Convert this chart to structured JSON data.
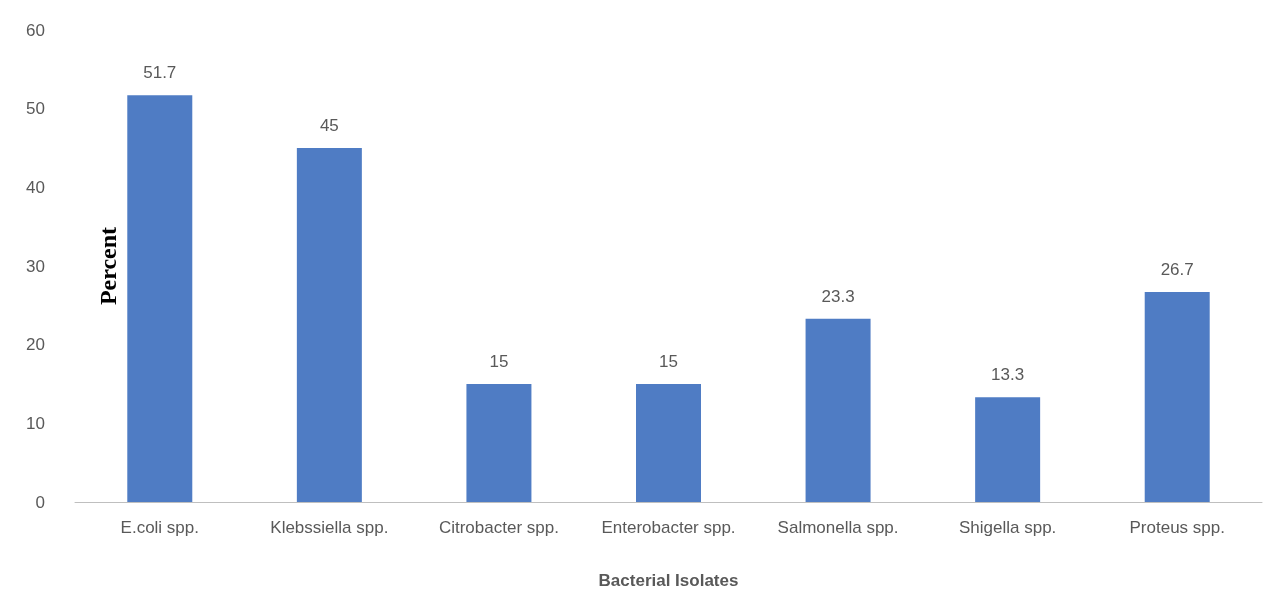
{
  "chart_data": {
    "type": "bar",
    "xlabel": "Bacterial Isolates",
    "ylabel": "Percent",
    "categories": [
      "E.coli spp.",
      "Klebssiella spp.",
      "Citrobacter spp.",
      "Enterobacter spp.",
      "Salmonella spp.",
      "Shigella spp.",
      "Proteus spp."
    ],
    "values": [
      51.7,
      45,
      15,
      15,
      23.3,
      13.3,
      26.7
    ],
    "color": "#4f7cc4",
    "ylim": [
      0,
      60
    ],
    "yticks": [
      0,
      10,
      20,
      30,
      40,
      50,
      60
    ],
    "grid": false,
    "data_labels": true
  }
}
